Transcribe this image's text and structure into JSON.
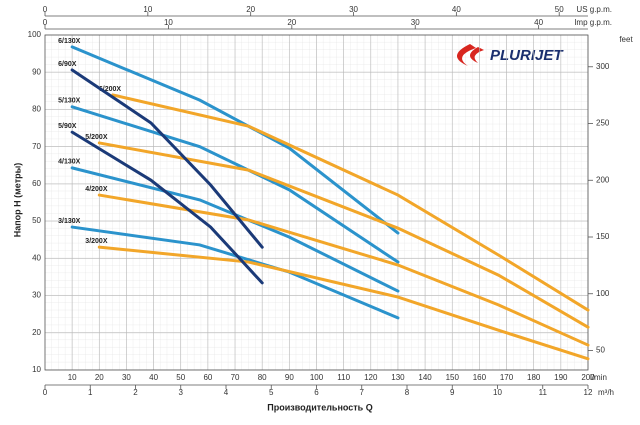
{
  "chart_data": {
    "type": "line",
    "x_label": "Производительность Q",
    "x_unit": "l/min",
    "y_label": "Напор H (метры)",
    "xlim": [
      0,
      200
    ],
    "xticks": [
      10,
      20,
      30,
      40,
      50,
      60,
      70,
      80,
      90,
      100,
      110,
      120,
      130,
      140,
      150,
      160,
      170,
      180,
      190,
      200
    ],
    "ylim": [
      10,
      100
    ],
    "yticks": [
      10,
      20,
      30,
      40,
      50,
      60,
      70,
      80,
      90,
      100
    ],
    "y2_unit": "feet",
    "y2lim": [
      32.8,
      328
    ],
    "y2ticks": [
      50,
      100,
      150,
      200,
      250,
      300
    ],
    "m3h_axis": {
      "unit": "m³/h",
      "lim": [
        0,
        12
      ],
      "ticks": [
        0,
        1,
        2,
        3,
        4,
        5,
        6,
        7,
        8,
        9,
        10,
        11,
        12
      ]
    },
    "usgpm_axis": {
      "unit": "US g.p.m.",
      "lim": [
        0,
        52.8
      ],
      "ticks": [
        0,
        10,
        20,
        30,
        40,
        50
      ]
    },
    "impgpm_axis": {
      "unit": "Imp g.p.m.",
      "lim": [
        0,
        44
      ],
      "ticks": [
        0,
        10,
        20,
        30,
        40
      ]
    },
    "grid": true,
    "logo": "PLURIJET",
    "series": [
      {
        "name": "6/130X",
        "color": "#2b93cc",
        "x": [
          10,
          57,
          90,
          130
        ],
        "values": [
          96.8,
          82.5,
          69.6,
          46.8
        ]
      },
      {
        "name": "5/130X",
        "color": "#2b93cc",
        "x": [
          10,
          57,
          90,
          130
        ],
        "values": [
          80.7,
          70,
          58.4,
          39
        ]
      },
      {
        "name": "4/130X",
        "color": "#2b93cc",
        "x": [
          10,
          57,
          90,
          130
        ],
        "values": [
          64.3,
          55.7,
          45.7,
          31.2
        ]
      },
      {
        "name": "3/130X",
        "color": "#2b93cc",
        "x": [
          10,
          57,
          90,
          130
        ],
        "values": [
          48.4,
          43.6,
          36.3,
          24
        ]
      },
      {
        "name": "6/200X",
        "color": "#f2a629",
        "x": [
          25,
          75,
          130,
          167,
          200
        ],
        "values": [
          83.9,
          75.5,
          57,
          40.9,
          26.1
        ]
      },
      {
        "name": "5/200X",
        "color": "#f2a629",
        "x": [
          20,
          75,
          130,
          167,
          200
        ],
        "values": [
          71,
          63.7,
          48.1,
          35.5,
          21.5
        ]
      },
      {
        "name": "4/200X",
        "color": "#f2a629",
        "x": [
          20,
          75,
          130,
          167,
          200
        ],
        "values": [
          57,
          50.3,
          38.2,
          27.5,
          16.7
        ]
      },
      {
        "name": "3/200X",
        "color": "#f2a629",
        "x": [
          20,
          75,
          130,
          167,
          200
        ],
        "values": [
          43,
          39,
          29.6,
          20.7,
          13
        ]
      },
      {
        "name": "6/90X",
        "color": "#1b3a78",
        "x": [
          10,
          39,
          61,
          80
        ],
        "values": [
          90.6,
          76.4,
          59.7,
          43
        ]
      },
      {
        "name": "5/90X",
        "color": "#1b3a78",
        "x": [
          10,
          39,
          61,
          80
        ],
        "values": [
          73.9,
          61,
          48.4,
          33.4
        ]
      }
    ]
  }
}
